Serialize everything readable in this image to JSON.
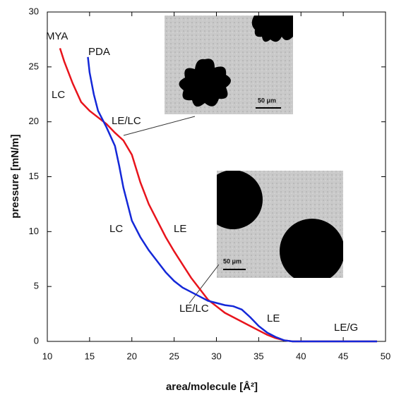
{
  "chart_data": {
    "type": "line",
    "xlabel": "area/molecule [Å²]",
    "ylabel": "pressure [mN/m]",
    "xlim": [
      10,
      50
    ],
    "xticks": [
      10,
      15,
      20,
      25,
      30,
      35,
      40,
      45,
      50
    ],
    "ylim": [
      0,
      30
    ],
    "yticks": [
      0,
      5,
      10,
      15,
      20,
      25,
      30
    ],
    "series": [
      {
        "name": "MYA",
        "color": "#e8141c",
        "x": [
          11.5,
          12,
          13,
          14,
          15,
          16,
          17,
          18,
          19,
          20,
          21,
          22,
          23,
          24,
          25,
          26,
          27,
          28,
          29,
          30,
          31,
          32,
          33,
          34,
          35,
          36,
          37,
          38,
          39,
          40,
          45,
          49
        ],
        "values": [
          26.7,
          25.5,
          23.5,
          21.8,
          21,
          20.4,
          19.8,
          19,
          18.3,
          17,
          14.5,
          12.5,
          11,
          9.5,
          8.2,
          7,
          5.8,
          4.8,
          3.8,
          3.2,
          2.6,
          2.2,
          1.8,
          1.4,
          1,
          0.6,
          0.3,
          0.1,
          0,
          0,
          0,
          0
        ]
      },
      {
        "name": "PDA",
        "color": "#1428d8",
        "x": [
          14.8,
          15,
          15.5,
          16,
          17,
          18,
          18.5,
          19,
          20,
          21,
          22,
          23,
          24,
          25,
          26,
          27,
          28,
          29,
          30,
          31,
          32,
          33,
          34,
          35,
          36,
          37,
          38,
          39,
          40,
          45,
          49
        ],
        "values": [
          25.9,
          24.5,
          22.5,
          21,
          19.5,
          17.8,
          16,
          14,
          11,
          9.5,
          8.3,
          7.3,
          6.3,
          5.5,
          4.9,
          4.5,
          4.1,
          3.7,
          3.5,
          3.3,
          3.2,
          2.9,
          2.2,
          1.4,
          0.8,
          0.4,
          0.1,
          0,
          0,
          0,
          0
        ]
      }
    ],
    "annotations": [
      "LC",
      "LE/LC",
      "LC",
      "LE",
      "LE/LC",
      "LE",
      "LE/G"
    ],
    "inset_labels": [
      "50 μm",
      "50 μm"
    ]
  }
}
